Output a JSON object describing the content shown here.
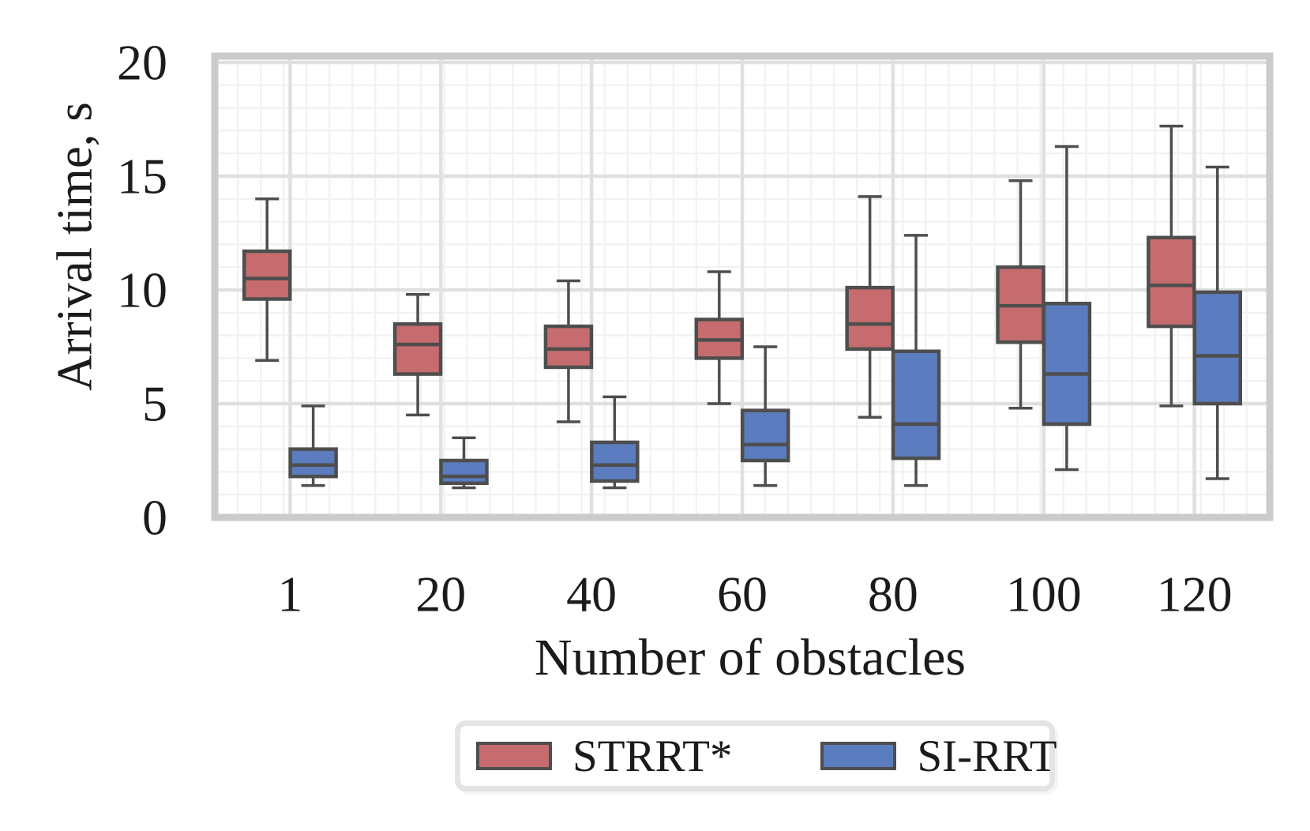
{
  "figure": {
    "y_axis_title": "Arrival time, s",
    "x_axis_title": "Number of obstacles"
  },
  "legend": {
    "items": [
      {
        "label": "STRRT*",
        "color": "#c66c6e"
      },
      {
        "label": "SI-RRT",
        "color": "#5b7cbe"
      }
    ]
  },
  "colors": {
    "strrt_fill": "#c66c6e",
    "sirrt_fill": "#5b7cbe",
    "box_edge": "#4e4e4e",
    "major_grid": "#e0e0e0",
    "minor_grid": "#f1f1f1",
    "plot_border": "#cbcbcb",
    "text": "#1b1b1b"
  },
  "chart_data": {
    "type": "boxplot",
    "title": "",
    "xlabel": "Number of obstacles",
    "ylabel": "Arrival time, s",
    "categories": [
      "1",
      "20",
      "40",
      "60",
      "80",
      "100",
      "120"
    ],
    "y_ticks": [
      0,
      5,
      10,
      15,
      20
    ],
    "ylim": [
      0,
      20.3
    ],
    "grid": "major-and-minor",
    "legend_position": "bottom-center",
    "series": [
      {
        "name": "STRRT*",
        "color": "#c66c6e",
        "boxes": [
          {
            "whisker_low": 6.9,
            "q1": 9.6,
            "median": 10.5,
            "q3": 11.7,
            "whisker_high": 14.0
          },
          {
            "whisker_low": 4.5,
            "q1": 6.3,
            "median": 7.6,
            "q3": 8.5,
            "whisker_high": 9.8
          },
          {
            "whisker_low": 4.2,
            "q1": 6.6,
            "median": 7.4,
            "q3": 8.4,
            "whisker_high": 10.4
          },
          {
            "whisker_low": 5.0,
            "q1": 7.0,
            "median": 7.8,
            "q3": 8.7,
            "whisker_high": 10.8
          },
          {
            "whisker_low": 4.4,
            "q1": 7.4,
            "median": 8.5,
            "q3": 10.1,
            "whisker_high": 14.1
          },
          {
            "whisker_low": 4.8,
            "q1": 7.7,
            "median": 9.3,
            "q3": 11.0,
            "whisker_high": 14.8
          },
          {
            "whisker_low": 4.9,
            "q1": 8.4,
            "median": 10.2,
            "q3": 12.3,
            "whisker_high": 17.2
          }
        ]
      },
      {
        "name": "SI-RRT",
        "color": "#5b7cbe",
        "boxes": [
          {
            "whisker_low": 1.4,
            "q1": 1.8,
            "median": 2.3,
            "q3": 3.0,
            "whisker_high": 4.9
          },
          {
            "whisker_low": 1.3,
            "q1": 1.5,
            "median": 1.8,
            "q3": 2.5,
            "whisker_high": 3.5
          },
          {
            "whisker_low": 1.3,
            "q1": 1.6,
            "median": 2.3,
            "q3": 3.3,
            "whisker_high": 5.3
          },
          {
            "whisker_low": 1.4,
            "q1": 2.5,
            "median": 3.2,
            "q3": 4.7,
            "whisker_high": 7.5
          },
          {
            "whisker_low": 1.4,
            "q1": 2.6,
            "median": 4.1,
            "q3": 7.3,
            "whisker_high": 12.4
          },
          {
            "whisker_low": 2.1,
            "q1": 4.1,
            "median": 6.3,
            "q3": 9.4,
            "whisker_high": 16.3
          },
          {
            "whisker_low": 1.7,
            "q1": 5.0,
            "median": 7.1,
            "q3": 9.9,
            "whisker_high": 15.4
          }
        ]
      }
    ]
  }
}
